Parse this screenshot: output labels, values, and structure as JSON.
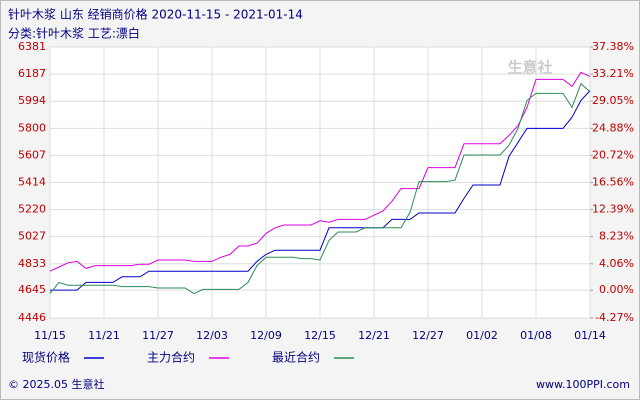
{
  "chart_data": {
    "type": "line",
    "title": "针叶木浆 山东 经销商价格 2020-11-15 - 2021-01-14",
    "subtitle": "分类:针叶木浆 工艺:漂白",
    "watermark": "生意社",
    "footer_left": "© 2025.05 生意社",
    "footer_right": "www.100PPI.com",
    "categories": [
      "11/15",
      null,
      null,
      null,
      null,
      null,
      "11/21",
      null,
      null,
      null,
      null,
      null,
      "11/27",
      null,
      null,
      null,
      null,
      null,
      "12/03",
      null,
      null,
      null,
      null,
      null,
      "12/09",
      null,
      null,
      null,
      null,
      null,
      "12/15",
      null,
      null,
      null,
      null,
      null,
      "12/21",
      null,
      null,
      null,
      null,
      null,
      "12/27",
      null,
      null,
      null,
      null,
      null,
      "01/02",
      null,
      null,
      null,
      null,
      null,
      "01/08",
      null,
      null,
      null,
      null,
      null,
      "01/14"
    ],
    "series": [
      {
        "name": "现货价格",
        "color": "#0000cc",
        "values": [
          4645,
          4645,
          4645,
          4645,
          4700,
          4700,
          4700,
          4700,
          4740,
          4740,
          4740,
          4780,
          4780,
          4780,
          4780,
          4780,
          4780,
          4780,
          4780,
          4780,
          4780,
          4780,
          4780,
          4850,
          4900,
          4930,
          4930,
          4930,
          4930,
          4930,
          4930,
          5090,
          5090,
          5090,
          5090,
          5090,
          5090,
          5090,
          5150,
          5150,
          5150,
          5196,
          5196,
          5196,
          5196,
          5196,
          5300,
          5396,
          5396,
          5396,
          5396,
          5600,
          5700,
          5800,
          5800,
          5800,
          5800,
          5800,
          5880,
          6000,
          6070
        ]
      },
      {
        "name": "主力合约",
        "color": "#dd00dd",
        "values": [
          4780,
          4810,
          4840,
          4850,
          4800,
          4820,
          4820,
          4820,
          4820,
          4820,
          4830,
          4830,
          4860,
          4860,
          4860,
          4860,
          4850,
          4850,
          4850,
          4880,
          4900,
          4960,
          4960,
          4980,
          5050,
          5090,
          5110,
          5110,
          5110,
          5110,
          5140,
          5130,
          5150,
          5150,
          5150,
          5150,
          5180,
          5210,
          5280,
          5370,
          5370,
          5370,
          5520,
          5520,
          5520,
          5520,
          5690,
          5690,
          5690,
          5690,
          5690,
          5750,
          5820,
          5950,
          6150,
          6150,
          6150,
          6150,
          6100,
          6200,
          6170
        ]
      },
      {
        "name": "最近合约",
        "color": "#2e8b57",
        "values": [
          4620,
          4700,
          4680,
          4680,
          4680,
          4680,
          4680,
          4680,
          4670,
          4670,
          4670,
          4670,
          4660,
          4660,
          4660,
          4660,
          4620,
          4650,
          4650,
          4650,
          4650,
          4650,
          4700,
          4820,
          4880,
          4880,
          4880,
          4880,
          4870,
          4870,
          4860,
          5000,
          5060,
          5060,
          5060,
          5090,
          5090,
          5090,
          5090,
          5090,
          5200,
          5420,
          5420,
          5420,
          5420,
          5430,
          5610,
          5610,
          5610,
          5610,
          5610,
          5680,
          5800,
          6000,
          6050,
          6050,
          6050,
          6050,
          5950,
          6120,
          6060
        ]
      }
    ],
    "ylim": [
      4446,
      6381
    ],
    "yticks": [
      4446,
      4645,
      4833,
      5027,
      5220,
      5414,
      5607,
      5800,
      5994,
      6187,
      6381
    ],
    "y2lim": [
      -4.27,
      37.38
    ],
    "y2ticks": [
      {
        "value": -4.27,
        "label": "-4.27%"
      },
      {
        "value": 0.0,
        "label": "0.00%"
      },
      {
        "value": 4.06,
        "label": "4.06%"
      },
      {
        "value": 8.23,
        "label": "8.23%"
      },
      {
        "value": 12.39,
        "label": "12.39%"
      },
      {
        "value": 16.56,
        "label": "16.56%"
      },
      {
        "value": 20.72,
        "label": "20.72%"
      },
      {
        "value": 24.88,
        "label": "24.88%"
      },
      {
        "value": 29.05,
        "label": "29.05%"
      },
      {
        "value": 33.21,
        "label": "33.21%"
      },
      {
        "value": 37.38,
        "label": "37.38%"
      }
    ],
    "grid": true
  }
}
